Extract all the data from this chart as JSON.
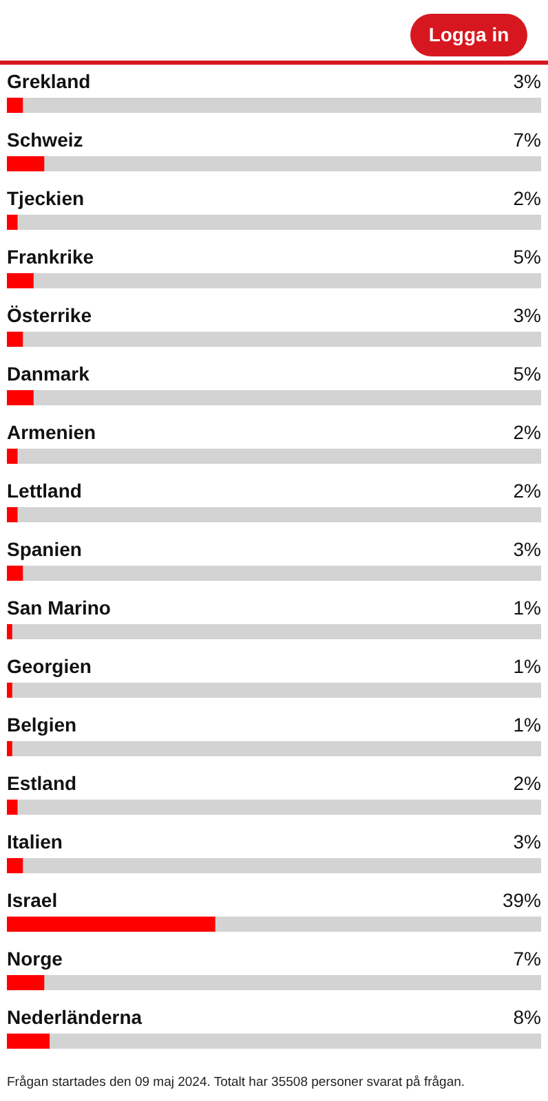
{
  "chart_data": {
    "type": "bar",
    "orientation": "horizontal",
    "categories": [
      "Grekland",
      "Schweiz",
      "Tjeckien",
      "Frankrike",
      "Österrike",
      "Danmark",
      "Armenien",
      "Lettland",
      "Spanien",
      "San Marino",
      "Georgien",
      "Belgien",
      "Estland",
      "Italien",
      "Israel",
      "Norge",
      "Nederländerna"
    ],
    "values": [
      3,
      7,
      2,
      5,
      3,
      5,
      2,
      2,
      3,
      1,
      1,
      1,
      2,
      3,
      39,
      7,
      8
    ],
    "value_labels": [
      "3%",
      "7%",
      "2%",
      "5%",
      "3%",
      "5%",
      "2%",
      "2%",
      "3%",
      "1%",
      "1%",
      "1%",
      "2%",
      "3%",
      "39%",
      "7%",
      "8%"
    ],
    "color": "#ff0000",
    "xlim": [
      0,
      100
    ],
    "annotations": [
      "Logga in",
      "Frågan startades den 09 maj 2024. Totalt har 35508 personer svarat på frågan."
    ]
  }
}
